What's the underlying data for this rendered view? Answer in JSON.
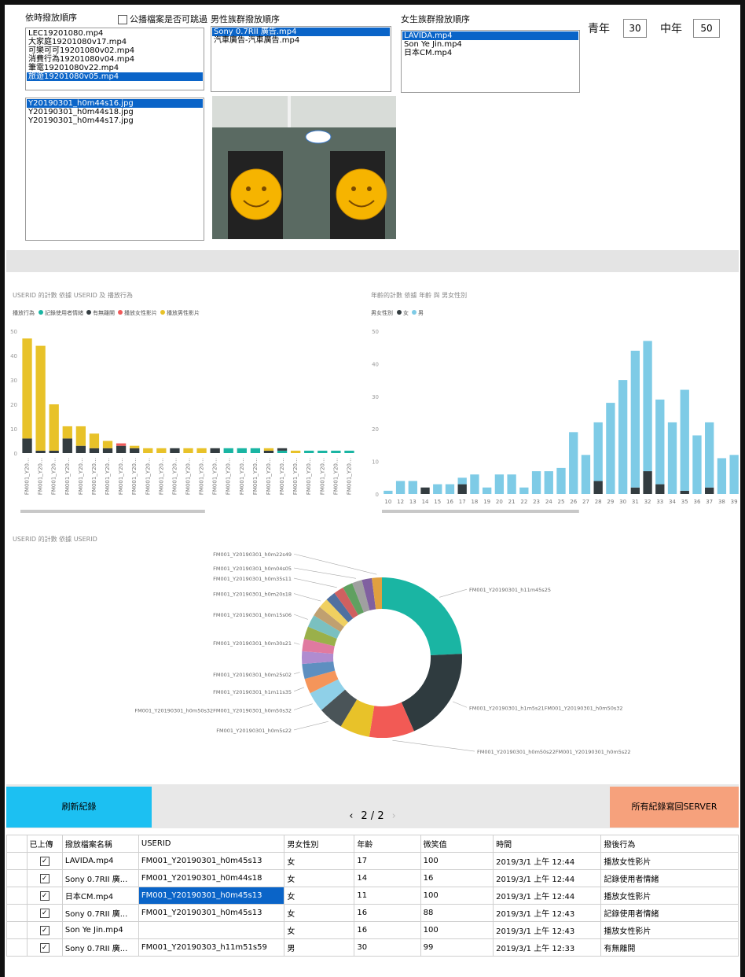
{
  "ui": {
    "list1_label": "依時撥放順序",
    "list1_items": [
      "LEC19201080.mp4",
      "大家庭19201080v17.mp4",
      "可樂可可19201080v02.mp4",
      "消費行為19201080v04.mp4",
      "筆電19201080v22.mp4",
      "旅遊19201080v05.mp4"
    ],
    "skip_checkbox": "公播檔案是否可跳過",
    "male_label": "男性族群撥放順序",
    "male_items": [
      "Sony 0.7RII 廣告.mp4",
      "汽車廣告-汽車廣告.mp4"
    ],
    "female_label": "女生族群撥放順序",
    "female_items": [
      "LAVIDA.mp4",
      "Son Ye Jin.mp4",
      "日本CM.mp4"
    ],
    "youth_label": "青年",
    "youth_value": "30",
    "middle_label": "中年",
    "middle_value": "50",
    "image_items": [
      "Y20190301_h0m44s16.jpg",
      "Y20190301_h0m44s18.jpg",
      "Y20190301_h0m44s17.jpg"
    ],
    "refresh_button": "刷新紀錄",
    "page": "2 / 2",
    "upload_button": "所有紀錄寫回SERVER"
  },
  "table": {
    "columns": [
      "已上傳",
      "撥放檔案名稱",
      "USERID",
      "男女性別",
      "年齡",
      "微笑值",
      "時間",
      "撥後行為"
    ],
    "rows": [
      [
        "LAVIDA.mp4",
        "FM001_Y20190301_h0m45s13",
        "女",
        "17",
        "100",
        "2019/3/1 上午 12:44",
        "播放女性影片"
      ],
      [
        "Sony 0.7RII 廣...",
        "FM001_Y20190301_h0m44s18",
        "女",
        "14",
        "16",
        "2019/3/1 上午 12:44",
        "記錄使用者情緒"
      ],
      [
        "日本CM.mp4",
        "FM001_Y20190301_h0m45s13",
        "女",
        "11",
        "100",
        "2019/3/1 上午 12:44",
        "播放女性影片"
      ],
      [
        "Sony 0.7RII 廣...",
        "FM001_Y20190301_h0m45s13",
        "女",
        "16",
        "88",
        "2019/3/1 上午 12:43",
        "記錄使用者情緒"
      ],
      [
        "Son Ye Jin.mp4",
        "",
        "女",
        "16",
        "100",
        "2019/3/1 上午 12:43",
        "播放女性影片"
      ],
      [
        "Sony 0.7RII 廣...",
        "FM001_Y20190303_h11m51s59",
        "男",
        "30",
        "99",
        "2019/3/1 上午 12:33",
        "有無離開"
      ]
    ]
  },
  "chart_data": [
    {
      "type": "bar",
      "title": "USERID 的計數 依據 USERID 及 播放行為",
      "legend_title": "播放行為",
      "categories": [
        "FM001_Y20…",
        "FM001_Y20…",
        "FM001_Y20…",
        "FM001_Y20…",
        "FM001_Y20…",
        "FM001_Y20…",
        "FM001_Y20…",
        "FM001_Y20…",
        "FM001_Y20…",
        "FM001_Y20…",
        "FM001_Y20…",
        "FM001_Y20…",
        "FM001_Y20…",
        "FM001_Y20…",
        "FM001_Y20…",
        "FM001_Y20…",
        "FM001_Y20…",
        "FM001_Y20…",
        "FM001_Y20…",
        "FM001_Y20…",
        "FM001_Y20…",
        "FM001_Y20…",
        "FM001_Y20…",
        "FM001_Y20…",
        "FM001_Y20…"
      ],
      "series": [
        {
          "name": "記錄使用者情緒",
          "color": "#1ab5a3",
          "values": [
            0,
            0,
            0,
            0,
            0,
            0,
            0,
            0,
            0,
            0,
            0,
            0,
            0,
            0,
            0,
            2,
            2,
            2,
            0,
            1,
            0,
            1,
            1,
            1,
            1
          ]
        },
        {
          "name": "有無離開",
          "color": "#333c40",
          "values": [
            6,
            1,
            1,
            6,
            3,
            2,
            2,
            3,
            2,
            0,
            0,
            2,
            0,
            0,
            2,
            0,
            0,
            0,
            1,
            1,
            0,
            0,
            0,
            0,
            0
          ]
        },
        {
          "name": "播放女性影片",
          "color": "#f05a5a",
          "values": [
            0,
            0,
            0,
            0,
            0,
            0,
            0,
            1,
            0,
            0,
            0,
            0,
            0,
            0,
            0,
            0,
            0,
            0,
            0,
            0,
            0,
            0,
            0,
            0,
            0
          ]
        },
        {
          "name": "播放男性影片",
          "color": "#e8c229",
          "values": [
            41,
            43,
            19,
            5,
            8,
            6,
            3,
            0,
            1,
            2,
            2,
            0,
            2,
            2,
            0,
            0,
            0,
            0,
            1,
            0,
            1,
            0,
            0,
            0,
            0
          ]
        }
      ],
      "ylim": [
        0,
        50
      ],
      "yticks": [
        0,
        10,
        20,
        30,
        40,
        50
      ]
    },
    {
      "type": "bar",
      "title": "年齡的計數 依據 年齡 與 男女性別",
      "legend_title": "男女性別",
      "categories": [
        "10",
        "12",
        "13",
        "14",
        "15",
        "16",
        "17",
        "18",
        "19",
        "20",
        "21",
        "22",
        "23",
        "24",
        "25",
        "26",
        "27",
        "28",
        "29",
        "30",
        "31",
        "32",
        "33",
        "34",
        "35",
        "36",
        "37",
        "38",
        "39"
      ],
      "series": [
        {
          "name": "女",
          "color": "#333c40",
          "values": [
            0,
            0,
            0,
            2,
            0,
            0,
            3,
            0,
            0,
            0,
            0,
            0,
            0,
            0,
            0,
            0,
            0,
            4,
            0,
            0,
            2,
            7,
            3,
            0,
            1,
            0,
            2,
            0,
            0
          ]
        },
        {
          "name": "男",
          "color": "#7ecbe6",
          "values": [
            1,
            4,
            4,
            0,
            3,
            3,
            2,
            6,
            2,
            6,
            6,
            2,
            7,
            7,
            8,
            19,
            12,
            18,
            28,
            35,
            42,
            40,
            26,
            22,
            31,
            18,
            20,
            11,
            12
          ]
        }
      ],
      "ylim": [
        0,
        50
      ],
      "yticks": [
        0,
        10,
        20,
        30,
        40,
        50
      ]
    },
    {
      "type": "pie",
      "title": "USERID 的計數 依據 USERID",
      "categories": [
        "FM001_Y20190301_h11m45s25",
        "FM001_Y20190301_h1m5s21FM001_Y20190301_h0m50s32",
        "FM001_Y20190301_h0m50s22FM001_Y20190301_h0m5s22",
        null,
        "FM001_Y20190301_h0m5s22",
        "FM001_Y20190301_h0m50s32FM001_Y20190301_h0m50s32",
        "FM001_Y20190301_h1m11s35",
        "FM001_Y20190301_h0m25s02",
        null,
        "FM001_Y20190301_h0m30s21",
        null,
        "FM001_Y20190301_h0m15s06",
        null,
        "FM001_Y20190301_h0m20s18",
        null,
        "FM001_Y20190301_h0m35s11",
        null,
        "FM001_Y20190301_h0m04s05",
        null,
        "FM001_Y20190301_h0m22s49"
      ],
      "values": [
        24,
        19,
        9,
        6,
        5,
        4,
        3,
        3,
        2.5,
        2.5,
        2.5,
        2.5,
        2,
        2,
        2,
        2,
        2,
        2,
        2,
        2
      ],
      "colors": [
        "#1ab5a3",
        "#2f3b3f",
        "#f25a55",
        "#e8c229",
        "#4a5458",
        "#8fd0e8",
        "#f5955a",
        "#5e8fc0",
        "#b08cd0",
        "#e07aa0",
        "#9ab04a",
        "#7ac0c0",
        "#c0a070",
        "#f0d060",
        "#5070a0",
        "#d06060",
        "#60a060",
        "#a0a0a0",
        "#8060a0",
        "#e0a040"
      ]
    }
  ]
}
